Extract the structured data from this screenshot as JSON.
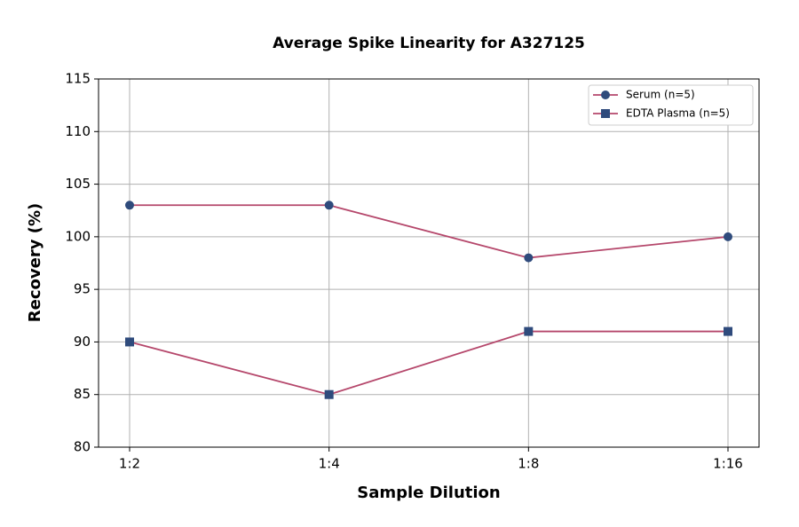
{
  "chart_data": {
    "type": "line",
    "title": "Average Spike Linearity for A327125",
    "x_label": "Sample Dilution",
    "y_label": "Recovery (%)",
    "categories": [
      "1:2",
      "1:4",
      "1:8",
      "1:16"
    ],
    "series": [
      {
        "name": "Serum (n=5)",
        "color": "#b5476b",
        "marker": "circle",
        "marker_color": "#2f4b7c",
        "values": [
          103,
          103,
          98,
          100
        ]
      },
      {
        "name": "EDTA Plasma (n=5)",
        "color": "#b5476b",
        "marker": "square",
        "marker_color": "#2f4b7c",
        "values": [
          90,
          85,
          91,
          91
        ]
      }
    ],
    "ylim": [
      80,
      115
    ],
    "yticks": [
      80,
      85,
      90,
      95,
      100,
      105,
      110,
      115
    ],
    "grid": true,
    "legend": "upper right"
  }
}
